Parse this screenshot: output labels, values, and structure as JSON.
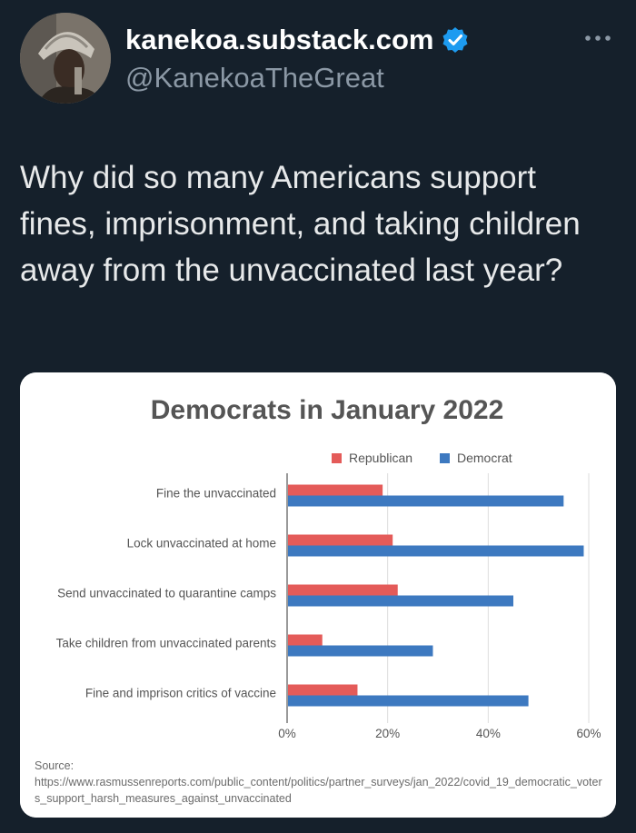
{
  "user": {
    "display_name": "kanekoa.substack.com",
    "handle": "@KanekoaTheGreat",
    "verified_icon": "verified-badge-icon",
    "more_icon": "more-icon"
  },
  "tweet": {
    "text": "Why did so many Americans support fines, imprisonment, and taking children away from the unvaccinated last year?"
  },
  "colors": {
    "republican": "#e45b59",
    "democrat": "#3d79c0"
  },
  "chart_data": {
    "type": "bar",
    "orientation": "horizontal",
    "title": "Democrats in January 2022",
    "categories": [
      "Fine the unvaccinated",
      "Lock unvaccinated at home",
      "Send unvaccinated to quarantine camps",
      "Take children from unvaccinated parents",
      "Fine and imprison critics of vaccine"
    ],
    "series": [
      {
        "name": "Republican",
        "values": [
          19,
          21,
          22,
          7,
          14
        ]
      },
      {
        "name": "Democrat",
        "values": [
          55,
          59,
          45,
          29,
          48
        ]
      }
    ],
    "x_ticks": [
      "0%",
      "20%",
      "40%",
      "60%"
    ],
    "xlim": [
      0,
      60
    ],
    "grid": true,
    "legend_position": "top"
  },
  "source": {
    "label": "Source:",
    "url": "https://www.rasmussenreports.com/public_content/politics/partner_surveys/jan_2022/covid_19_democratic_voters_support_harsh_measures_against_unvaccinated"
  }
}
